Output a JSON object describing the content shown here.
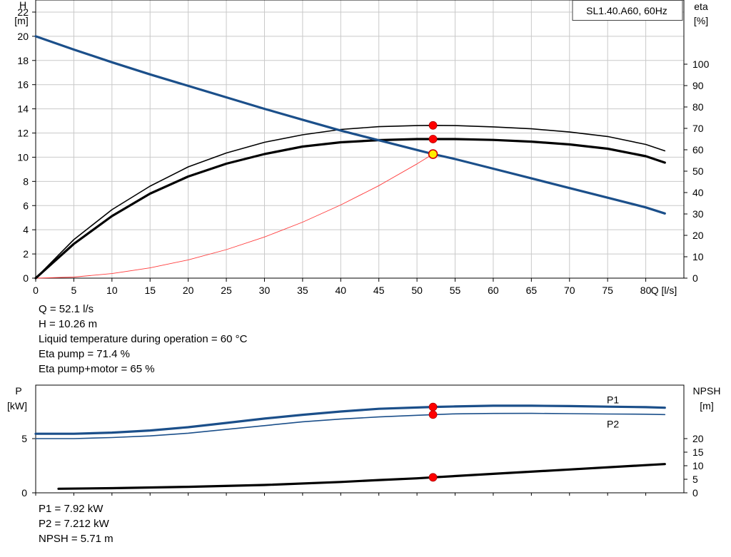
{
  "chart_data": [
    {
      "type": "line",
      "title": "SL1.40.A60, 60Hz",
      "xlabel": "Q [l/s]",
      "ylabel_left": [
        "H",
        "[m]"
      ],
      "ylabel_right": [
        "eta",
        "[%]"
      ],
      "xlim": [
        0,
        85
      ],
      "ylim_left": [
        0,
        23
      ],
      "ylim_right": [
        0,
        100
      ],
      "x_ticks": [
        0,
        5,
        10,
        15,
        20,
        25,
        30,
        35,
        40,
        45,
        50,
        55,
        60,
        65,
        70,
        75,
        80
      ],
      "y_ticks_left": [
        0,
        2,
        4,
        6,
        8,
        10,
        12,
        14,
        16,
        18,
        20,
        22
      ],
      "y_ticks_right": [
        0,
        10,
        20,
        30,
        40,
        50,
        60,
        70,
        80,
        90,
        100
      ],
      "grid": true,
      "series": [
        {
          "axis": "left",
          "color": "#1b4f8a",
          "width": 3.2,
          "x": [
            0,
            5,
            10,
            15,
            20,
            25,
            30,
            35,
            40,
            45,
            50,
            52.1,
            55,
            60,
            65,
            70,
            75,
            80,
            82.5
          ],
          "y": [
            20.0,
            18.9,
            17.85,
            16.85,
            15.9,
            14.95,
            14.0,
            13.1,
            12.2,
            11.4,
            10.6,
            10.26,
            9.85,
            9.05,
            8.25,
            7.45,
            6.65,
            5.85,
            5.35
          ]
        },
        {
          "axis": "right",
          "color": "#000000",
          "width": 1.6,
          "x": [
            0,
            5,
            10,
            15,
            20,
            25,
            30,
            35,
            40,
            45,
            50,
            52.1,
            55,
            60,
            65,
            70,
            75,
            80,
            82.5
          ],
          "y": [
            0,
            18,
            32,
            43,
            52,
            58.5,
            63.5,
            67,
            69.5,
            70.8,
            71.3,
            71.4,
            71.3,
            70.7,
            69.8,
            68.3,
            66.2,
            62.5,
            59.5
          ]
        },
        {
          "axis": "right",
          "color": "#000000",
          "width": 3.2,
          "x": [
            0,
            5,
            10,
            15,
            20,
            25,
            30,
            35,
            40,
            45,
            50,
            52.1,
            55,
            60,
            65,
            70,
            75,
            80,
            82.5
          ],
          "y": [
            0,
            16,
            29,
            39.5,
            47.5,
            53.5,
            58,
            61.5,
            63.5,
            64.5,
            65,
            65,
            65,
            64.6,
            63.8,
            62.5,
            60.5,
            57,
            54
          ]
        },
        {
          "axis": "left",
          "color": "#ff3b3b",
          "width": 0.9,
          "x": [
            0,
            5,
            10,
            15,
            20,
            25,
            30,
            35,
            40,
            45,
            50,
            52.1
          ],
          "y": [
            0,
            0.09,
            0.38,
            0.85,
            1.51,
            2.36,
            3.4,
            4.63,
            6.05,
            7.65,
            9.45,
            10.26
          ]
        }
      ],
      "markers": [
        {
          "axis": "right",
          "x": 52.1,
          "y": 71.4
        },
        {
          "axis": "right",
          "x": 52.1,
          "y": 65
        }
      ],
      "duty_point": {
        "x": 52.1,
        "y": 10.26
      }
    },
    {
      "type": "line",
      "ylabel_left": [
        "P",
        "[kW]"
      ],
      "ylabel_right": [
        "NPSH",
        "[m]"
      ],
      "xlim": [
        0,
        85
      ],
      "ylim_left": [
        0,
        10
      ],
      "ylim_right": [
        0,
        30
      ],
      "y_ticks_left": [
        0,
        5
      ],
      "y_ticks_right": [
        0,
        5,
        10,
        15,
        20
      ],
      "series": [
        {
          "name": "P1",
          "axis": "left",
          "color": "#1b4f8a",
          "width": 3.2,
          "x": [
            0,
            5,
            10,
            15,
            20,
            25,
            30,
            35,
            40,
            45,
            50,
            52.1,
            55,
            60,
            65,
            70,
            75,
            80,
            82.5
          ],
          "y": [
            5.45,
            5.45,
            5.55,
            5.75,
            6.05,
            6.45,
            6.85,
            7.2,
            7.5,
            7.75,
            7.87,
            7.92,
            7.97,
            8.03,
            8.03,
            8.0,
            7.95,
            7.9,
            7.85
          ]
        },
        {
          "name": "P2",
          "axis": "left",
          "color": "#1b4f8a",
          "width": 1.6,
          "x": [
            0,
            5,
            10,
            15,
            20,
            25,
            30,
            35,
            40,
            45,
            50,
            52.1,
            55,
            60,
            65,
            70,
            75,
            80,
            82.5
          ],
          "y": [
            5.0,
            5.0,
            5.1,
            5.25,
            5.5,
            5.85,
            6.2,
            6.55,
            6.8,
            7.0,
            7.15,
            7.212,
            7.28,
            7.32,
            7.33,
            7.3,
            7.27,
            7.25,
            7.22
          ]
        },
        {
          "name": "NPSH",
          "axis": "right",
          "color": "#000000",
          "width": 3.2,
          "x": [
            3,
            10,
            20,
            30,
            40,
            45,
            50,
            52.1,
            60,
            70,
            80,
            82.5
          ],
          "y": [
            1.5,
            1.7,
            2.2,
            2.9,
            4.0,
            4.7,
            5.35,
            5.71,
            7.0,
            8.6,
            10.2,
            10.6
          ]
        }
      ],
      "markers": [
        {
          "axis": "left",
          "x": 52.1,
          "y": 7.92
        },
        {
          "axis": "left",
          "x": 52.1,
          "y": 7.212
        },
        {
          "axis": "right",
          "x": 52.1,
          "y": 5.71
        }
      ]
    }
  ],
  "readouts": {
    "q": "Q = 52.1 l/s",
    "h": "H = 10.26 m",
    "liquid_temp": "Liquid temperature during operation = 60 °C",
    "eta_pump": "Eta pump = 71.4 %",
    "eta_pump_motor": "Eta pump+motor = 65 %",
    "p1": "P1 = 7.92 kW",
    "p2": "P2 = 7.212 kW",
    "npsh": "NPSH = 5.71 m"
  },
  "colors": {
    "grid": "#c9c9c9",
    "frame": "#000000",
    "marker": "#ff0000",
    "duty_fill": "#ffee00"
  }
}
